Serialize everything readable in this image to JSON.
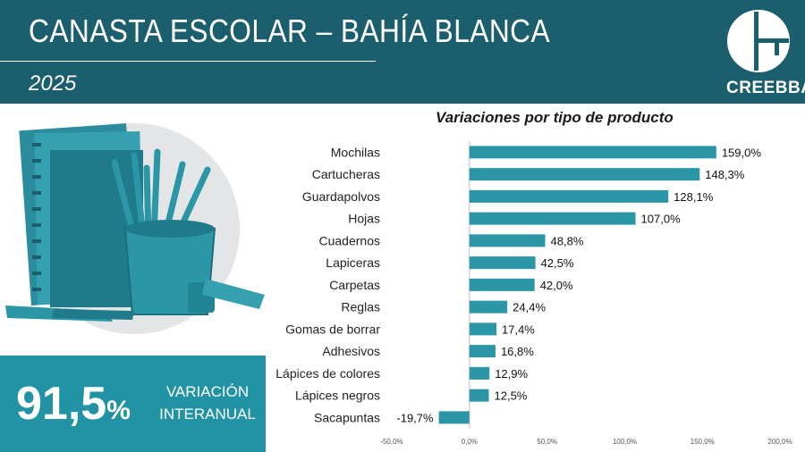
{
  "header": {
    "title": "CANASTA ESCOLAR – BAHÍA BLANCA",
    "year": "2025",
    "logo_text": "CREEBBA"
  },
  "stat": {
    "value": "91,5",
    "unit": "%",
    "label_line1": "VARIACIÓN",
    "label_line2": "INTERANUAL"
  },
  "colors": {
    "header_bg": "#1b5f6f",
    "stat_bg": "#2293a5",
    "bar": "#2a96a6"
  },
  "chart_data": {
    "type": "bar",
    "orientation": "horizontal",
    "title": "Variaciones por tipo de producto",
    "categories": [
      "Mochilas",
      "Cartucheras",
      "Guardapolvos",
      "Hojas",
      "Cuadernos",
      "Lapiceras",
      "Carpetas",
      "Reglas",
      "Gomas de borrar",
      "Adhesivos",
      "Lápices de colores",
      "Lápices negros",
      "Sacapuntas"
    ],
    "values": [
      159.0,
      148.3,
      128.1,
      107.0,
      48.8,
      42.5,
      42.0,
      24.4,
      17.4,
      16.8,
      12.9,
      12.5,
      -19.7
    ],
    "value_labels": [
      "159,0%",
      "148,3%",
      "128,1%",
      "107,0%",
      "48,8%",
      "42,5%",
      "42,0%",
      "24,4%",
      "17,4%",
      "16,8%",
      "12,9%",
      "12,5%",
      "-19,7%"
    ],
    "xlim": [
      -50,
      200
    ],
    "xticks": [
      -50,
      0,
      50,
      100,
      150,
      200
    ],
    "xtick_labels": [
      "-50,0%",
      "0,0%",
      "50,0%",
      "100,0%",
      "150,0%",
      "200,0%"
    ],
    "grid": false,
    "legend": "none"
  }
}
